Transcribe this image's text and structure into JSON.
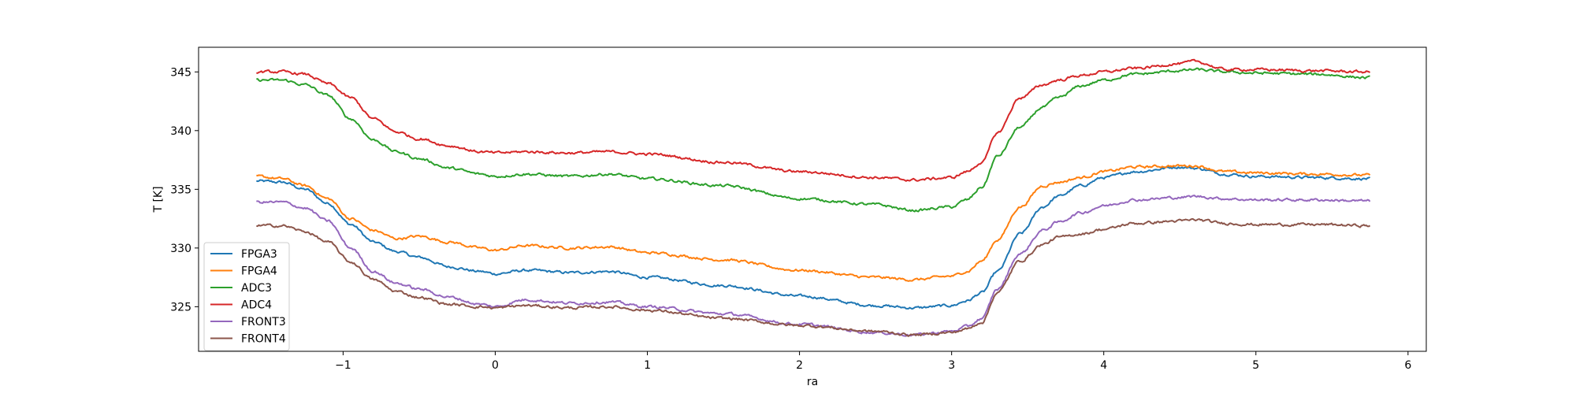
{
  "chart_data": {
    "type": "line",
    "title": "",
    "xlabel": "ra",
    "ylabel": "T [K]",
    "xlim": [
      -1.95,
      6.12
    ],
    "ylim": [
      321.2,
      347.1
    ],
    "xticks": [
      -1,
      0,
      1,
      2,
      3,
      4,
      5,
      6
    ],
    "yticks": [
      325,
      330,
      335,
      340,
      345
    ],
    "grid": false,
    "legend": "lower-left",
    "x": [
      -1.57,
      -1.4,
      -1.25,
      -1.1,
      -0.95,
      -0.8,
      -0.65,
      -0.5,
      -0.3,
      -0.1,
      0.0,
      0.2,
      0.5,
      0.75,
      1.0,
      1.5,
      2.0,
      2.5,
      2.75,
      3.0,
      3.1,
      3.2,
      3.3,
      3.45,
      3.6,
      3.7,
      3.85,
      4.0,
      4.2,
      4.5,
      4.6,
      4.8,
      5.0,
      5.4,
      5.75
    ],
    "series": [
      {
        "name": "FPGA3",
        "color": "#1f77b4",
        "values": [
          335.7,
          335.6,
          335.0,
          333.8,
          332.0,
          330.5,
          329.7,
          329.2,
          328.4,
          328.0,
          327.8,
          328.1,
          327.9,
          328.0,
          327.5,
          326.8,
          325.9,
          325.1,
          324.9,
          325.1,
          325.5,
          326.2,
          328.0,
          331.2,
          333.5,
          334.4,
          335.3,
          336.0,
          336.5,
          336.9,
          336.8,
          336.3,
          336.1,
          336.0,
          335.9
        ]
      },
      {
        "name": "FPGA4",
        "color": "#ff7f0e",
        "values": [
          336.1,
          335.9,
          335.3,
          334.2,
          332.5,
          331.5,
          330.8,
          331.0,
          330.5,
          330.0,
          329.8,
          330.2,
          330.0,
          330.1,
          329.6,
          329.0,
          328.1,
          327.5,
          327.3,
          327.6,
          328.0,
          328.9,
          330.7,
          333.5,
          335.3,
          335.6,
          336.0,
          336.5,
          336.9,
          337.0,
          337.0,
          336.5,
          336.4,
          336.3,
          336.2
        ]
      },
      {
        "name": "ADC3",
        "color": "#2ca02c",
        "values": [
          344.3,
          344.3,
          343.9,
          343.0,
          341.0,
          339.2,
          338.2,
          337.6,
          336.8,
          336.3,
          336.1,
          336.3,
          336.1,
          336.3,
          335.9,
          335.3,
          334.2,
          333.7,
          333.2,
          333.5,
          334.1,
          335.2,
          337.8,
          340.3,
          342.0,
          342.8,
          343.8,
          344.3,
          344.8,
          345.1,
          345.2,
          345.0,
          344.9,
          344.8,
          344.5
        ]
      },
      {
        "name": "ADC4",
        "color": "#d62728",
        "values": [
          345.0,
          345.0,
          344.8,
          344.0,
          342.8,
          341.0,
          339.9,
          339.3,
          338.7,
          338.2,
          338.1,
          338.2,
          338.1,
          338.2,
          338.0,
          337.3,
          336.5,
          336.0,
          335.8,
          336.0,
          336.5,
          337.3,
          339.8,
          342.8,
          343.9,
          344.3,
          344.7,
          345.0,
          345.3,
          345.7,
          345.9,
          345.2,
          345.2,
          345.1,
          345.0
        ]
      },
      {
        "name": "FRONT3",
        "color": "#9467bd",
        "values": [
          333.9,
          333.9,
          333.4,
          332.3,
          330.0,
          328.0,
          327.0,
          326.5,
          325.8,
          325.2,
          325.0,
          325.6,
          325.3,
          325.4,
          325.0,
          324.4,
          323.5,
          322.8,
          322.6,
          322.9,
          323.3,
          324.0,
          326.5,
          329.5,
          331.5,
          332.2,
          333.0,
          333.6,
          334.1,
          334.3,
          334.4,
          334.2,
          334.1,
          334.1,
          334.0
        ]
      },
      {
        "name": "FRONT4",
        "color": "#8c564b",
        "values": [
          331.9,
          331.9,
          331.4,
          330.5,
          328.8,
          327.3,
          326.3,
          325.8,
          325.2,
          325.0,
          324.9,
          325.1,
          324.9,
          325.0,
          324.7,
          324.0,
          323.4,
          322.9,
          322.6,
          322.8,
          323.1,
          323.7,
          326.2,
          328.9,
          330.3,
          330.9,
          331.2,
          331.6,
          332.1,
          332.3,
          332.4,
          332.1,
          332.0,
          332.0,
          331.9
        ]
      }
    ]
  }
}
